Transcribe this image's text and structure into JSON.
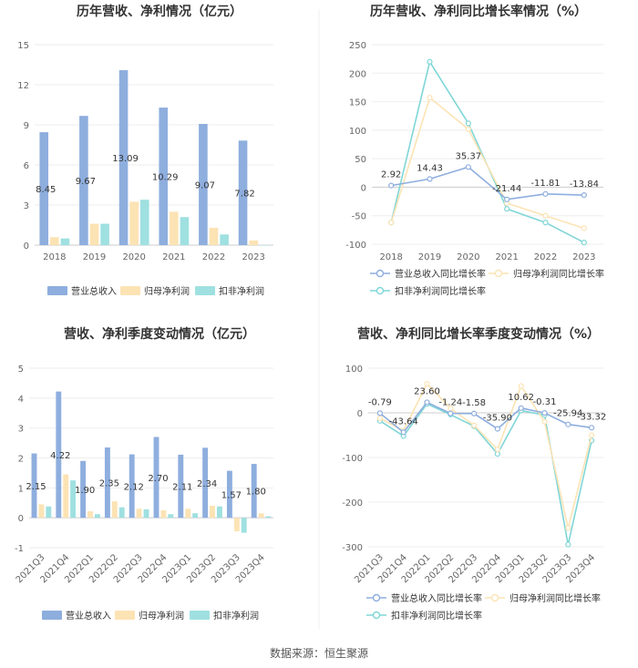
{
  "footer": "数据来源：恒生聚源",
  "colors": {
    "revenue": "#8eaede",
    "net": "#fce3b4",
    "deduct": "#9fe0e0",
    "rev_line": "#8eaede",
    "net_line": "#fce3b4",
    "ded_line": "#7fd6d6"
  },
  "chart_data": [
    {
      "id": "annual-bar",
      "type": "bar",
      "title": "历年营收、净利情况（亿元）",
      "categories": [
        "2018",
        "2019",
        "2020",
        "2021",
        "2022",
        "2023"
      ],
      "ylim": [
        0,
        15
      ],
      "yticks": [
        0,
        3,
        6,
        9,
        12,
        15
      ],
      "series": [
        {
          "name": "营业总收入",
          "values": [
            8.45,
            9.67,
            13.09,
            10.29,
            9.07,
            7.82
          ],
          "labels": [
            "8.45",
            "9.67",
            "13.09",
            "10.29",
            "9.07",
            "7.82"
          ]
        },
        {
          "name": "归母净利润",
          "values": [
            0.6,
            1.6,
            3.25,
            2.5,
            1.3,
            0.35
          ]
        },
        {
          "name": "扣非净利润",
          "values": [
            0.5,
            1.6,
            3.4,
            2.1,
            0.8,
            0.0
          ]
        }
      ]
    },
    {
      "id": "annual-line",
      "type": "line",
      "title": "历年营收、净利同比增长率情况（%）",
      "categories": [
        "2018",
        "2019",
        "2020",
        "2021",
        "2022",
        "2023"
      ],
      "ylim": [
        -100,
        250
      ],
      "yticks": [
        -100,
        -50,
        0,
        50,
        100,
        150,
        200,
        250
      ],
      "series": [
        {
          "name": "营业总收入同比增长率",
          "values": [
            2.92,
            14.43,
            35.37,
            -21.44,
            -11.81,
            -13.84
          ],
          "labels": [
            "2.92",
            "14.43",
            "35.37",
            "-21.44",
            "-11.81",
            "-13.84"
          ]
        },
        {
          "name": "归母净利润同比增长率",
          "values": [
            -62,
            157,
            102,
            -28,
            -50,
            -72
          ]
        },
        {
          "name": "扣非净利润同比增长率",
          "values": [
            -62,
            220,
            112,
            -38,
            -62,
            -97
          ]
        }
      ]
    },
    {
      "id": "quarter-bar",
      "type": "bar",
      "title": "营收、净利季度变动情况（亿元）",
      "categories": [
        "2021Q3",
        "2021Q4",
        "2022Q1",
        "2022Q2",
        "2022Q3",
        "2022Q4",
        "2023Q1",
        "2023Q2",
        "2023Q3",
        "2023Q4"
      ],
      "ylim": [
        -1,
        5
      ],
      "yticks": [
        -1,
        0,
        1,
        2,
        3,
        4,
        5
      ],
      "series": [
        {
          "name": "营业总收入",
          "values": [
            2.15,
            4.22,
            1.9,
            2.35,
            2.12,
            2.7,
            2.11,
            2.34,
            1.57,
            1.8
          ],
          "labels": [
            "2.15",
            "4.22",
            "1.90",
            "2.35",
            "2.12",
            "2.70",
            "2.11",
            "2.34",
            "1.57",
            "1.80"
          ]
        },
        {
          "name": "归母净利润",
          "values": [
            0.45,
            1.45,
            0.22,
            0.55,
            0.3,
            0.25,
            0.3,
            0.4,
            -0.45,
            0.15
          ]
        },
        {
          "name": "扣非净利润",
          "values": [
            0.38,
            1.25,
            0.12,
            0.35,
            0.28,
            0.12,
            0.15,
            0.38,
            -0.5,
            0.05
          ]
        }
      ]
    },
    {
      "id": "quarter-line",
      "type": "line",
      "title": "营收、净利同比增长率季度变动情况（%）",
      "categories": [
        "2021Q3",
        "2021Q4",
        "2022Q1",
        "2022Q2",
        "2022Q3",
        "2022Q4",
        "2023Q1",
        "2023Q2",
        "2023Q3",
        "2023Q4"
      ],
      "ylim": [
        -300,
        100
      ],
      "yticks": [
        -300,
        -200,
        -100,
        0,
        100
      ],
      "series": [
        {
          "name": "营业总收入同比增长率",
          "values": [
            -0.79,
            -43.64,
            23.6,
            -1.24,
            -1.58,
            -35.9,
            10.62,
            -0.31,
            -25.94,
            -33.32
          ],
          "labels": [
            "-0.79",
            "-43.64",
            "23.60",
            "-1.24",
            "-1.58",
            "-35.90",
            "10.62",
            "-0.31",
            "-25.94",
            "-33.32"
          ]
        },
        {
          "name": "归母净利润同比增长率",
          "values": [
            -12,
            -40,
            65,
            10,
            -28,
            -82,
            60,
            -20,
            -258,
            -50
          ]
        },
        {
          "name": "扣非净利润同比增长率",
          "values": [
            -18,
            -52,
            20,
            -4,
            -30,
            -92,
            5,
            -5,
            -295,
            -62
          ]
        }
      ]
    }
  ]
}
